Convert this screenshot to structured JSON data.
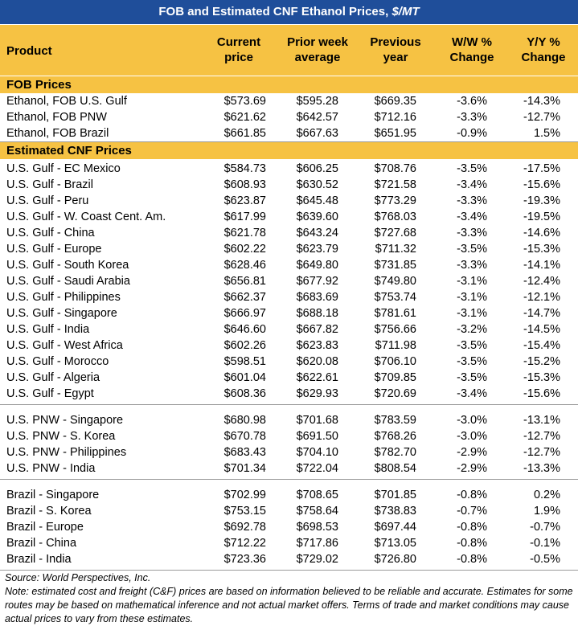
{
  "title": {
    "text": "FOB and Estimated CNF Ethanol Prices, ",
    "unit": "$/MT"
  },
  "table": {
    "columns": [
      "Product",
      "Current price",
      "Prior week average",
      "Previous year",
      "W/W % Change",
      "Y/Y % Change"
    ],
    "sections": [
      {
        "title": "FOB Prices",
        "groups": [
          [
            [
              "Ethanol, FOB U.S. Gulf",
              "$573.69",
              "$595.28",
              "$669.35",
              "-3.6%",
              "-14.3%"
            ],
            [
              "Ethanol, FOB PNW",
              "$621.62",
              "$642.57",
              "$712.16",
              "-3.3%",
              "-12.7%"
            ],
            [
              "Ethanol, FOB Brazil",
              "$661.85",
              "$667.63",
              "$651.95",
              "-0.9%",
              "1.5%"
            ]
          ]
        ]
      },
      {
        "title": "Estimated CNF Prices",
        "groups": [
          [
            [
              "U.S. Gulf - EC Mexico",
              "$584.73",
              "$606.25",
              "$708.76",
              "-3.5%",
              "-17.5%"
            ],
            [
              "U.S. Gulf - Brazil",
              "$608.93",
              "$630.52",
              "$721.58",
              "-3.4%",
              "-15.6%"
            ],
            [
              "U.S. Gulf - Peru",
              "$623.87",
              "$645.48",
              "$773.29",
              "-3.3%",
              "-19.3%"
            ],
            [
              "U.S. Gulf - W. Coast Cent. Am.",
              "$617.99",
              "$639.60",
              "$768.03",
              "-3.4%",
              "-19.5%"
            ],
            [
              "U.S. Gulf - China",
              "$621.78",
              "$643.24",
              "$727.68",
              "-3.3%",
              "-14.6%"
            ],
            [
              "U.S. Gulf - Europe",
              "$602.22",
              "$623.79",
              "$711.32",
              "-3.5%",
              "-15.3%"
            ],
            [
              "U.S. Gulf - South Korea",
              "$628.46",
              "$649.80",
              "$731.85",
              "-3.3%",
              "-14.1%"
            ],
            [
              "U.S. Gulf - Saudi Arabia",
              "$656.81",
              "$677.92",
              "$749.80",
              "-3.1%",
              "-12.4%"
            ],
            [
              "U.S. Gulf - Philippines",
              "$662.37",
              "$683.69",
              "$753.74",
              "-3.1%",
              "-12.1%"
            ],
            [
              "U.S. Gulf - Singapore",
              "$666.97",
              "$688.18",
              "$781.61",
              "-3.1%",
              "-14.7%"
            ],
            [
              "U.S. Gulf - India",
              "$646.60",
              "$667.82",
              "$756.66",
              "-3.2%",
              "-14.5%"
            ],
            [
              "U.S. Gulf - West Africa",
              "$602.26",
              "$623.83",
              "$711.98",
              "-3.5%",
              "-15.4%"
            ],
            [
              "U.S. Gulf - Morocco",
              "$598.51",
              "$620.08",
              "$706.10",
              "-3.5%",
              "-15.2%"
            ],
            [
              "U.S. Gulf - Algeria",
              "$601.04",
              "$622.61",
              "$709.85",
              "-3.5%",
              "-15.3%"
            ],
            [
              "U.S. Gulf - Egypt",
              "$608.36",
              "$629.93",
              "$720.69",
              "-3.4%",
              "-15.6%"
            ]
          ],
          [
            [
              "U.S. PNW - Singapore",
              "$680.98",
              "$701.68",
              "$783.59",
              "-3.0%",
              "-13.1%"
            ],
            [
              "U.S. PNW - S. Korea",
              "$670.78",
              "$691.50",
              "$768.26",
              "-3.0%",
              "-12.7%"
            ],
            [
              "U.S. PNW - Philippines",
              "$683.43",
              "$704.10",
              "$782.70",
              "-2.9%",
              "-12.7%"
            ],
            [
              "U.S. PNW - India",
              "$701.34",
              "$722.04",
              "$808.54",
              "-2.9%",
              "-13.3%"
            ]
          ],
          [
            [
              "Brazil - Singapore",
              "$702.99",
              "$708.65",
              "$701.85",
              "-0.8%",
              "0.2%"
            ],
            [
              "Brazil - S. Korea",
              "$753.15",
              "$758.64",
              "$738.83",
              "-0.7%",
              "1.9%"
            ],
            [
              "Brazil - Europe",
              "$692.78",
              "$698.53",
              "$697.44",
              "-0.8%",
              "-0.7%"
            ],
            [
              "Brazil - China",
              "$712.22",
              "$717.86",
              "$713.05",
              "-0.8%",
              "-0.1%"
            ],
            [
              "Brazil - India",
              "$723.36",
              "$729.02",
              "$726.80",
              "-0.8%",
              "-0.5%"
            ]
          ]
        ]
      }
    ]
  },
  "footer": {
    "source": "Source: World Perspectives, Inc.",
    "note": "Note: estimated cost and freight (C&F) prices are based on information believed to be reliable and accurate. Estimates for some routes may be based on mathematical inference and not actual market offers. Terms of trade and market conditions may cause actual prices to vary from these estimates."
  }
}
